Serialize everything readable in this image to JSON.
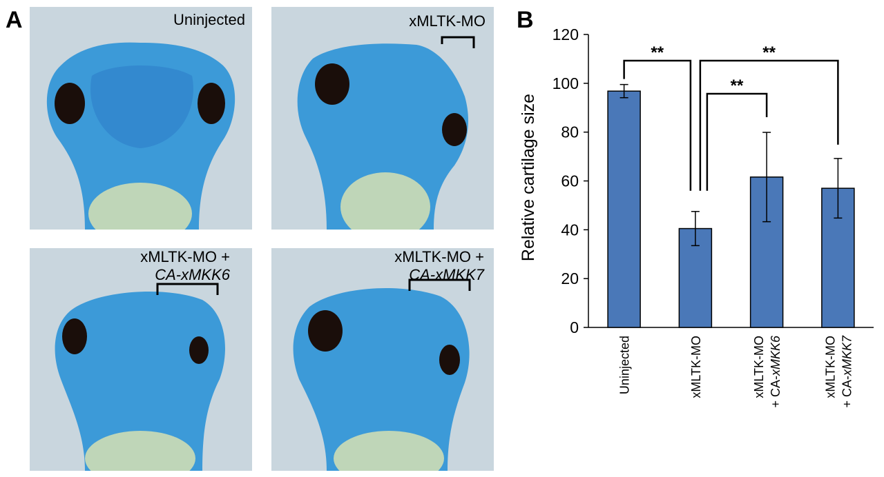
{
  "panel_a": {
    "letter": "A",
    "photos": [
      {
        "label": "Uninjected",
        "label_italic": ""
      },
      {
        "label": "xMLTK-MO",
        "label_italic": ""
      },
      {
        "label": "xMLTK-MO +",
        "label_italic": "CA-xMKK6"
      },
      {
        "label": "xMLTK-MO +",
        "label_italic": "CA-xMKK7"
      }
    ]
  },
  "panel_b": {
    "letter": "B"
  },
  "chart_data": {
    "type": "bar",
    "categories": [
      "Uninjected",
      "xMLTK-MO",
      "xMLTK-MO + CA-xMKK6",
      "xMLTK-MO + CA-xMKK7"
    ],
    "category_lines": [
      [
        {
          "text": "Uninjected",
          "italic": ""
        }
      ],
      [
        {
          "text": "xMLTK-MO",
          "italic": ""
        }
      ],
      [
        {
          "text": "xMLTK-MO",
          "italic": ""
        },
        {
          "text": "+ CA-",
          "italic": "xMKK6"
        }
      ],
      [
        {
          "text": "xMLTK-MO",
          "italic": ""
        },
        {
          "text": "+ CA-",
          "italic": "xMKK7"
        }
      ]
    ],
    "values": [
      96.8,
      40.5,
      61.6,
      57.0
    ],
    "errors": [
      2.7,
      7.0,
      18.3,
      12.2
    ],
    "ylabel": "Relative cartilage size",
    "ylim": [
      0,
      120
    ],
    "yticks": [
      "0",
      "20",
      "40",
      "60",
      "80",
      "100",
      "120"
    ],
    "bar_color": "#4a78b8",
    "grid": false,
    "significance": [
      {
        "from": 0,
        "to": 1,
        "label": "**"
      },
      {
        "from": 1,
        "to": 3,
        "label": "**"
      },
      {
        "from": 1,
        "to": 2,
        "label": "**"
      }
    ]
  }
}
